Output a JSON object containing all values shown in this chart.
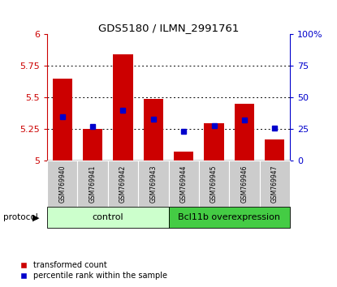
{
  "title": "GDS5180 / ILMN_2991761",
  "samples": [
    "GSM769940",
    "GSM769941",
    "GSM769942",
    "GSM769943",
    "GSM769944",
    "GSM769945",
    "GSM769946",
    "GSM769947"
  ],
  "red_values": [
    5.65,
    5.25,
    5.84,
    5.49,
    5.07,
    5.3,
    5.45,
    5.17
  ],
  "blue_values_pct": [
    35,
    27,
    40,
    33,
    23,
    28,
    32,
    26
  ],
  "ylim": [
    5.0,
    6.0
  ],
  "yticks_left": [
    5.0,
    5.25,
    5.5,
    5.75,
    6.0
  ],
  "yticks_right": [
    0,
    25,
    50,
    75,
    100
  ],
  "left_color": "#cc0000",
  "right_color": "#0000cc",
  "bar_color": "#cc0000",
  "dot_color": "#0000cc",
  "control_light": "#ccffcc",
  "overexp_green": "#44cc44",
  "control_label": "control",
  "overexp_label": "Bcl11b overexpression",
  "protocol_label": "protocol",
  "legend_red": "transformed count",
  "legend_blue": "percentile rank within the sample",
  "n_control": 4,
  "n_overexp": 4,
  "label_bg": "#cccccc"
}
